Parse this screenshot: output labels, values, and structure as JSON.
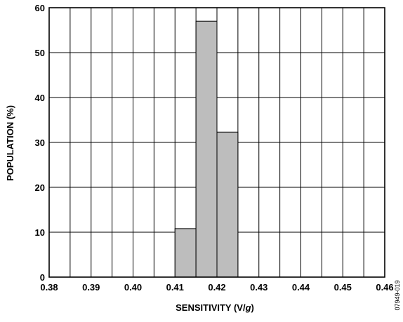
{
  "chart_data": {
    "type": "bar",
    "x_tick_labels": [
      "0.38",
      "0.39",
      "0.40",
      "0.41",
      "0.42",
      "0.43",
      "0.44",
      "0.45",
      "0.46"
    ],
    "y_tick_labels": [
      "0",
      "10",
      "20",
      "30",
      "40",
      "50",
      "60"
    ],
    "xlim": [
      0.38,
      0.46
    ],
    "ylim": [
      0,
      60
    ],
    "bin_width": 0.005,
    "bars": [
      {
        "x_start": 0.41,
        "x_end": 0.415,
        "value": 10.8
      },
      {
        "x_start": 0.415,
        "x_end": 0.42,
        "value": 57.0
      },
      {
        "x_start": 0.42,
        "x_end": 0.425,
        "value": 32.3
      }
    ],
    "xlabel_prefix": "SENSITIVITY (V/",
    "xlabel_italic": "g",
    "xlabel_suffix": ")",
    "ylabel": "POPULATION (%)",
    "grid": true,
    "bar_fill": "#bdbdbd",
    "bar_stroke": "#000000",
    "figure_id": "07949-019"
  }
}
